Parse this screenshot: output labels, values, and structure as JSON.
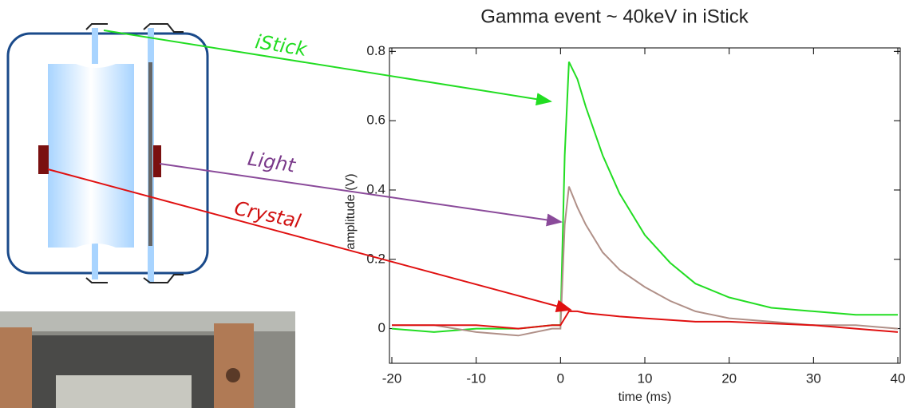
{
  "chart_data": {
    "type": "line",
    "title": "Gamma event  ~ 40keV in iStick",
    "x_label": "time (ms)",
    "y_label": "amplitude (V)",
    "annotations": [
      "iStick",
      "Light",
      "Crystal"
    ],
    "x": [
      -20,
      -15,
      -10,
      -5,
      -1,
      0,
      0.5,
      1,
      2,
      3,
      5,
      7,
      10,
      13,
      16,
      20,
      25,
      30,
      35,
      40
    ],
    "series": [
      {
        "name": "iStick",
        "color": "#22dd22",
        "values": [
          0.0,
          -0.01,
          0.0,
          0.0,
          0.01,
          0.01,
          0.5,
          0.77,
          0.72,
          0.64,
          0.5,
          0.39,
          0.27,
          0.19,
          0.13,
          0.09,
          0.06,
          0.05,
          0.04,
          0.04
        ]
      },
      {
        "name": "Light",
        "color": "#b09088",
        "values": [
          0.01,
          0.01,
          -0.01,
          -0.02,
          0.0,
          0.0,
          0.3,
          0.41,
          0.35,
          0.3,
          0.22,
          0.17,
          0.12,
          0.08,
          0.05,
          0.03,
          0.02,
          0.01,
          0.01,
          0.0
        ]
      },
      {
        "name": "Crystal",
        "color": "#e01010",
        "values": [
          0.01,
          0.01,
          0.01,
          0.0,
          0.01,
          0.01,
          0.03,
          0.05,
          0.05,
          0.045,
          0.04,
          0.035,
          0.03,
          0.025,
          0.02,
          0.02,
          0.015,
          0.01,
          0.0,
          -0.01
        ]
      }
    ],
    "xlim": [
      -20,
      40
    ],
    "ylim": [
      -0.1,
      0.81
    ],
    "xticks": [
      -20,
      -10,
      0,
      10,
      20,
      30,
      40
    ],
    "yticks": [
      0,
      0.2,
      0.4,
      0.6,
      0.8
    ]
  }
}
